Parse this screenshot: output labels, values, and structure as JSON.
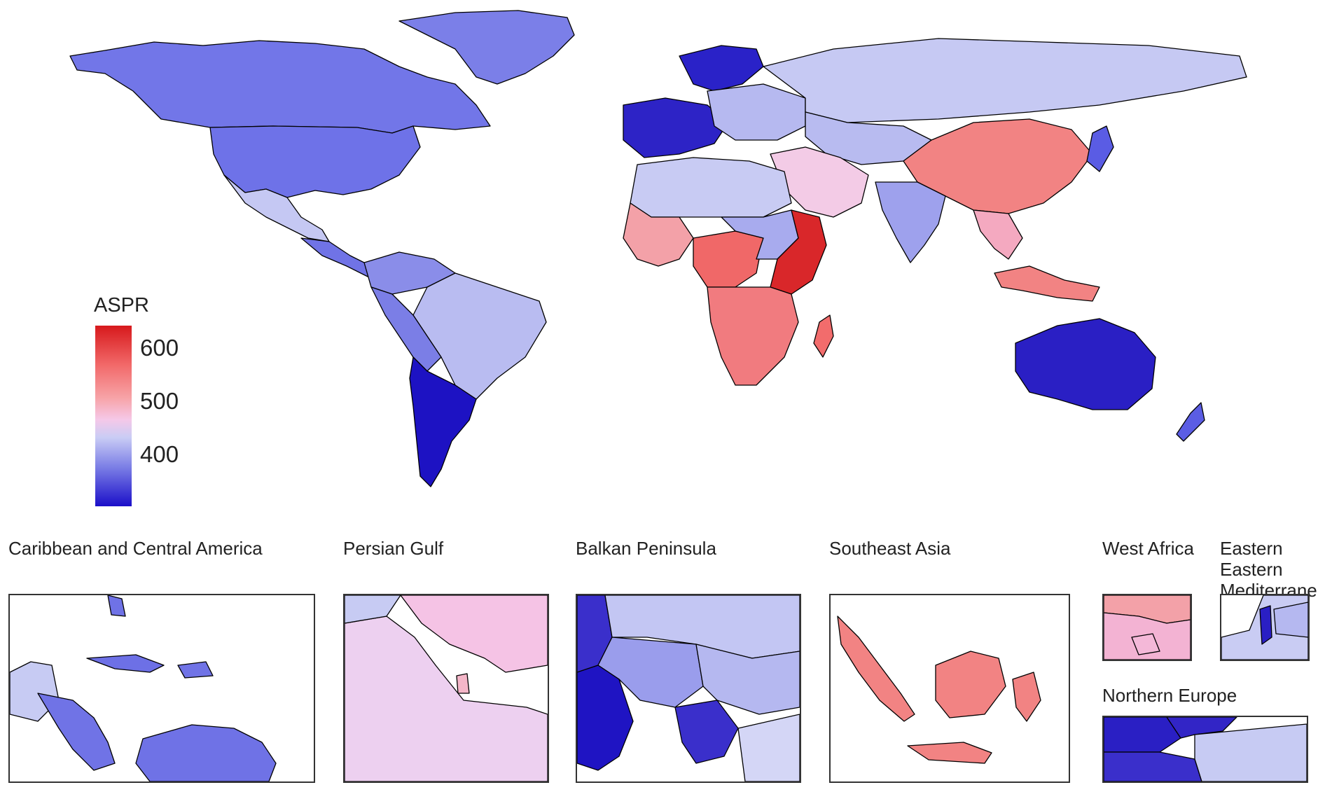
{
  "legend": {
    "title": "ASPR",
    "ticks": [
      "600",
      "500",
      "400"
    ],
    "colors": {
      "high": "#d7191c",
      "mid": "#f5c8e8",
      "low": "#1b0fc9"
    }
  },
  "insets": {
    "caribbean": "Caribbean and Central America",
    "persian_gulf": "Persian Gulf",
    "balkan": "Balkan Peninsula",
    "southeast_asia": "Southeast Asia",
    "west_africa": "West Africa",
    "eastern_med": "Eastern Mediterrane",
    "northern_europe": "Northern Europe"
  }
}
